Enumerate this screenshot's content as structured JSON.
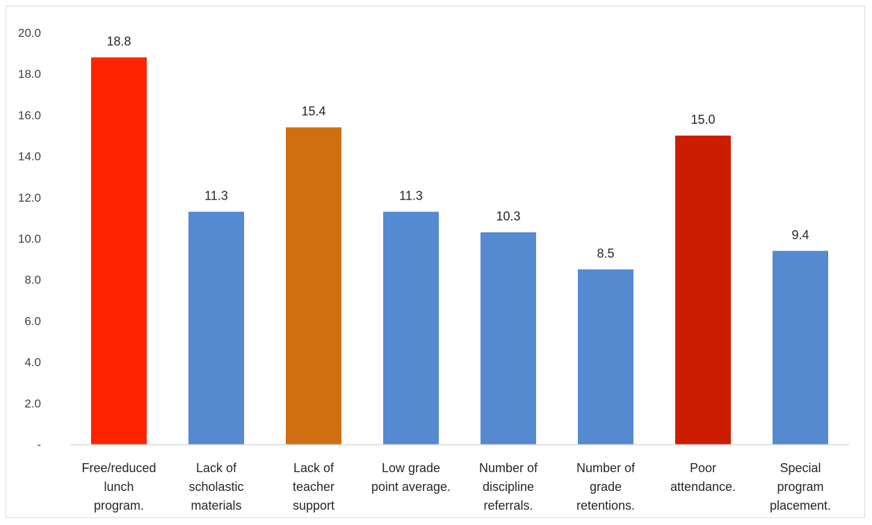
{
  "chart_data": {
    "type": "bar",
    "categories": [
      [
        "Free/reduced",
        "lunch",
        "program."
      ],
      [
        "Lack of",
        "scholastic",
        "materials"
      ],
      [
        "Lack of",
        "teacher",
        "support"
      ],
      [
        "Low grade",
        "point average."
      ],
      [
        "Number of",
        "discipline",
        "referrals."
      ],
      [
        "Number of",
        "grade",
        "retentions."
      ],
      [
        "Poor",
        "attendance."
      ],
      [
        "Special",
        "program",
        "placement."
      ]
    ],
    "values": [
      18.8,
      11.3,
      15.4,
      11.3,
      10.3,
      8.5,
      15.0,
      9.4
    ],
    "data_labels": [
      "18.8",
      "11.3",
      "15.4",
      "11.3",
      "10.3",
      "8.5",
      "15.0",
      "9.4"
    ],
    "bar_colors": [
      "#ff2400",
      "#5589d0",
      "#d06f12",
      "#5589d0",
      "#5589d0",
      "#5589d0",
      "#cc1d00",
      "#5589d0"
    ],
    "ylim": [
      0,
      20
    ],
    "y_ticks": [
      0,
      2,
      4,
      6,
      8,
      10,
      12,
      14,
      16,
      18,
      20
    ],
    "y_tick_labels": [
      "-",
      "2.0",
      "4.0",
      "6.0",
      "8.0",
      "10.0",
      "12.0",
      "14.0",
      "16.0",
      "18.0",
      "20.0"
    ],
    "grid": false,
    "legend": "none"
  }
}
